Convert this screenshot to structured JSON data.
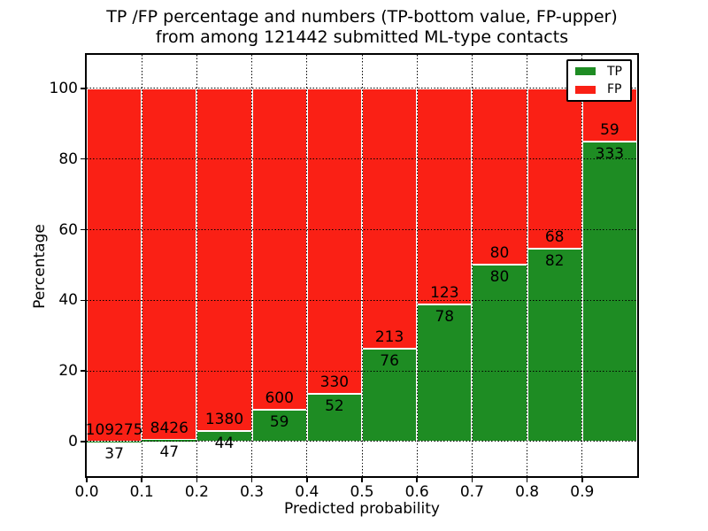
{
  "chart_data": {
    "type": "bar",
    "stacked": true,
    "title_lines": [
      "TP /FP percentage and numbers (TP-bottom value, FP-upper)",
      "from among 121442 submitted ML-type contacts"
    ],
    "total_submitted_contacts": "121442",
    "xlabel": "Predicted probability",
    "ylabel": "Percentage",
    "xlim": [
      0.0,
      1.0
    ],
    "ylim": [
      -9.8,
      109.5
    ],
    "xtick_labels": [
      "0.0",
      "0.1",
      "0.2",
      "0.3",
      "0.4",
      "0.5",
      "0.6",
      "0.7",
      "0.8",
      "0.9"
    ],
    "yticks": [
      0,
      20,
      40,
      60,
      80,
      100
    ],
    "grid": "dotted",
    "legend_position": "upper-right",
    "series": [
      {
        "name": "TP",
        "color": "#1e8c23",
        "role": "bottom-segment"
      },
      {
        "name": "FP",
        "color": "#fa2015",
        "role": "upper-segment"
      }
    ],
    "bins": [
      {
        "start": 0.0,
        "end": 0.1,
        "tp": 37,
        "fp": 109275
      },
      {
        "start": 0.1,
        "end": 0.2,
        "tp": 47,
        "fp": 8426
      },
      {
        "start": 0.2,
        "end": 0.3,
        "tp": 44,
        "fp": 1380
      },
      {
        "start": 0.3,
        "end": 0.4,
        "tp": 59,
        "fp": 600
      },
      {
        "start": 0.4,
        "end": 0.5,
        "tp": 52,
        "fp": 330
      },
      {
        "start": 0.5,
        "end": 0.6,
        "tp": 76,
        "fp": 213
      },
      {
        "start": 0.6,
        "end": 0.7,
        "tp": 78,
        "fp": 123
      },
      {
        "start": 0.7,
        "end": 0.8,
        "tp": 80,
        "fp": 80
      },
      {
        "start": 0.8,
        "end": 0.9,
        "tp": 82,
        "fp": 68
      },
      {
        "start": 0.9,
        "end": 1.0,
        "tp": 333,
        "fp": 59
      }
    ],
    "bar_edge_color": "#ffffff",
    "axis_color": "#000000"
  }
}
